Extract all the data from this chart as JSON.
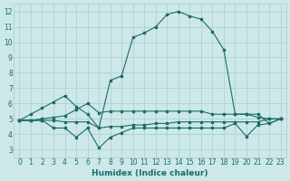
{
  "background_color": "#cce8e8",
  "grid_color": "#aacece",
  "line_color": "#1a6b6b",
  "xlabel": "Humidex (Indice chaleur)",
  "xlim": [
    -0.5,
    23.5
  ],
  "ylim": [
    2.5,
    12.5
  ],
  "yticks": [
    3,
    4,
    5,
    6,
    7,
    8,
    9,
    10,
    11,
    12
  ],
  "xticks": [
    0,
    1,
    2,
    3,
    4,
    5,
    6,
    7,
    8,
    9,
    10,
    11,
    12,
    13,
    14,
    15,
    16,
    17,
    18,
    19,
    20,
    21,
    22,
    23
  ],
  "series": [
    {
      "x": [
        0,
        1,
        2,
        3,
        4,
        5,
        6,
        7,
        8,
        9,
        10,
        11,
        12,
        13,
        14,
        15,
        16,
        17,
        18,
        19,
        20,
        21,
        22,
        23
      ],
      "y": [
        4.9,
        5.3,
        5.7,
        6.1,
        6.5,
        5.8,
        5.3,
        4.4,
        7.5,
        7.8,
        10.3,
        10.6,
        11.0,
        11.8,
        12.0,
        11.7,
        11.5,
        10.7,
        9.5,
        5.3,
        5.3,
        5.3,
        4.7,
        5.0
      ]
    },
    {
      "x": [
        0,
        1,
        2,
        3,
        4,
        5,
        6,
        7,
        8,
        9,
        10,
        11,
        12,
        13,
        14,
        15,
        16,
        17,
        18,
        19,
        20,
        21,
        22,
        23
      ],
      "y": [
        4.9,
        4.9,
        5.0,
        5.1,
        5.2,
        5.6,
        6.0,
        5.4,
        5.5,
        5.5,
        5.5,
        5.5,
        5.5,
        5.5,
        5.5,
        5.5,
        5.5,
        5.3,
        5.3,
        5.3,
        5.3,
        5.1,
        5.0,
        5.0
      ]
    },
    {
      "x": [
        0,
        1,
        2,
        3,
        4,
        5,
        6,
        7,
        8,
        9,
        10,
        11,
        12,
        13,
        14,
        15,
        16,
        17,
        18,
        19,
        20,
        21,
        22,
        23
      ],
      "y": [
        4.9,
        4.9,
        4.9,
        4.9,
        4.8,
        4.8,
        4.8,
        4.4,
        4.5,
        4.5,
        4.6,
        4.6,
        4.7,
        4.7,
        4.8,
        4.8,
        4.8,
        4.8,
        4.8,
        4.8,
        4.8,
        4.8,
        5.0,
        5.0
      ]
    },
    {
      "x": [
        0,
        1,
        2,
        3,
        4,
        5,
        6,
        7,
        8,
        9,
        10,
        11,
        12,
        13,
        14,
        15,
        16,
        17,
        18,
        19,
        20,
        21,
        22,
        23
      ],
      "y": [
        4.9,
        4.9,
        4.9,
        4.4,
        4.4,
        3.8,
        4.4,
        3.1,
        3.8,
        4.1,
        4.4,
        4.4,
        4.4,
        4.4,
        4.4,
        4.4,
        4.4,
        4.4,
        4.4,
        4.7,
        3.85,
        4.6,
        4.7,
        5.0
      ]
    }
  ]
}
